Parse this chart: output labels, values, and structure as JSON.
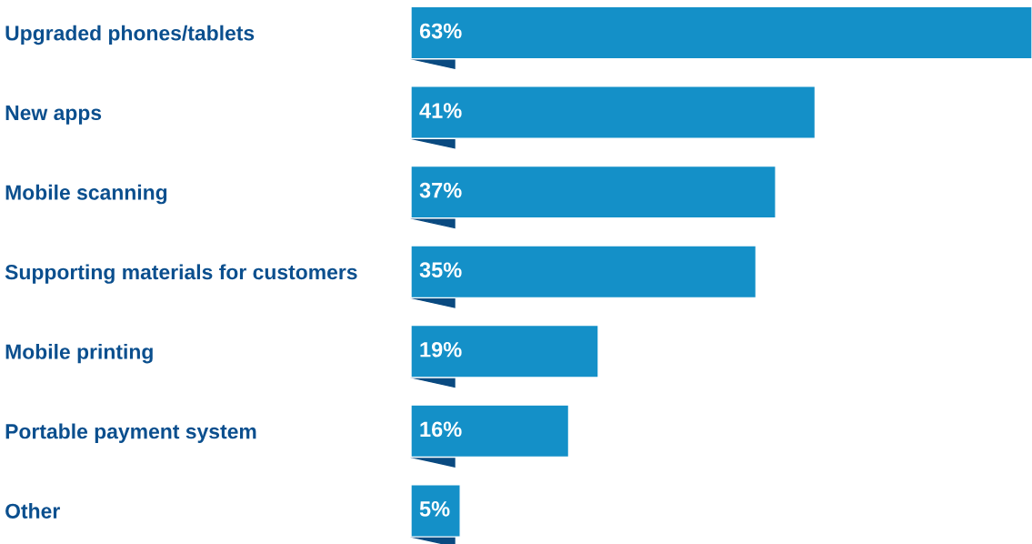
{
  "chart_data": {
    "type": "bar",
    "orientation": "horizontal",
    "categories": [
      "Upgraded phones/tablets",
      "New apps",
      "Mobile scanning",
      "Supporting materials for customers",
      "Mobile printing",
      "Portable payment system",
      "Other"
    ],
    "values": [
      63,
      41,
      37,
      35,
      19,
      16,
      5
    ],
    "value_labels": [
      "63%",
      "41%",
      "37%",
      "35%",
      "19%",
      "16%",
      "5%"
    ],
    "color": "#1490c8",
    "xlim": [
      0,
      63
    ],
    "grid": false,
    "legend": false
  }
}
